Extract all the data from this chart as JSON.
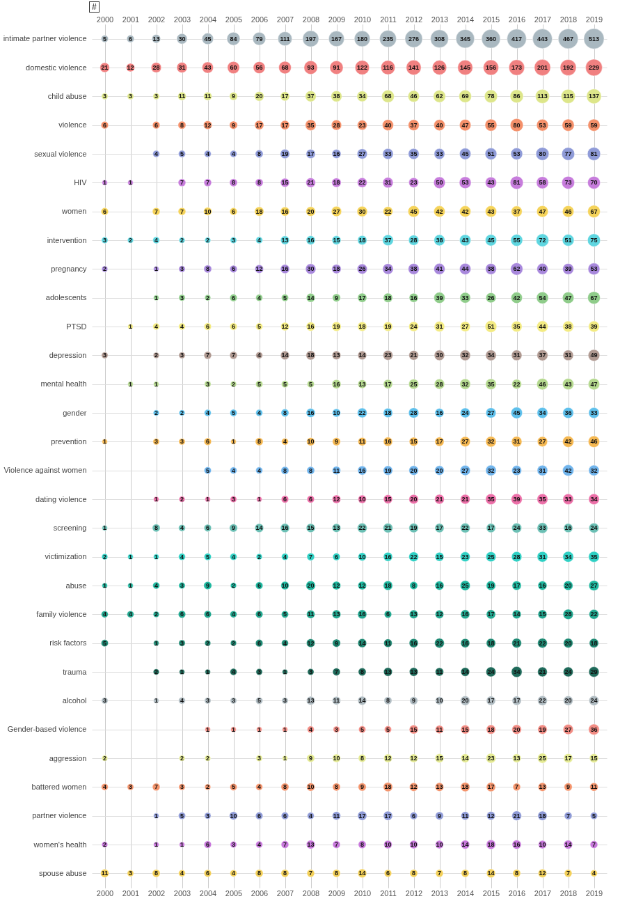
{
  "chart_data": {
    "type": "heatmap",
    "grid": true,
    "data_labels": true,
    "annotations": [
      "#"
    ],
    "categories": [
      "2000",
      "2001",
      "2002",
      "2003",
      "2004",
      "2005",
      "2006",
      "2007",
      "2008",
      "2009",
      "2010",
      "2011",
      "2012",
      "2013",
      "2014",
      "2015",
      "2016",
      "2017",
      "2018",
      "2019"
    ],
    "y_categories": [
      "intimate partner violence",
      "domestic violence",
      "child abuse",
      "violence",
      "sexual violence",
      "HIV",
      "women",
      "intervention",
      "pregnancy",
      "adolescents",
      "PTSD",
      "depression",
      "mental health",
      "gender",
      "prevention",
      "Violence against women",
      "dating violence",
      "screening",
      "victimization",
      "abuse",
      "family violence",
      "risk factors",
      "trauma",
      "alcohol",
      "Gender-based violence",
      "aggression",
      "battered women",
      "partner violence",
      "women's health",
      "spouse abuse"
    ],
    "colors": [
      "#a9b8c0",
      "#f08080",
      "#dde68a",
      "#f4906a",
      "#8f9bd8",
      "#c77ddc",
      "#f5d35a",
      "#5fd6e0",
      "#a888dc",
      "#8fcc8a",
      "#f3eb82",
      "#b09a92",
      "#b5d98f",
      "#5ec0ec",
      "#f5b852",
      "#70b4ec",
      "#ec6fa8",
      "#6bbfb4",
      "#2fd0c4",
      "#1fb8a0",
      "#22a890",
      "#1f8a74",
      "#1f6a5a",
      "#b0bcc2",
      "#f28c84",
      "#e4ea92",
      "#f4946c",
      "#8e9ad6",
      "#c878dc",
      "#f3d05a"
    ],
    "cells": [
      [
        5,
        6,
        13,
        30,
        45,
        84,
        79,
        111,
        197,
        167,
        180,
        235,
        276,
        308,
        345,
        360,
        417,
        443,
        467,
        513
      ],
      [
        21,
        12,
        28,
        31,
        43,
        60,
        56,
        68,
        93,
        91,
        122,
        116,
        141,
        126,
        145,
        156,
        173,
        201,
        192,
        229
      ],
      [
        3,
        3,
        3,
        11,
        11,
        9,
        20,
        17,
        37,
        38,
        34,
        68,
        46,
        62,
        69,
        78,
        86,
        113,
        115,
        137
      ],
      [
        6,
        null,
        6,
        8,
        12,
        9,
        17,
        17,
        35,
        28,
        23,
        40,
        37,
        40,
        47,
        55,
        80,
        53,
        59,
        59
      ],
      [
        null,
        null,
        4,
        5,
        4,
        4,
        8,
        19,
        17,
        16,
        27,
        33,
        35,
        33,
        45,
        51,
        53,
        80,
        77,
        81
      ],
      [
        1,
        1,
        null,
        7,
        7,
        8,
        8,
        15,
        21,
        18,
        22,
        31,
        23,
        50,
        53,
        43,
        81,
        58,
        73,
        70
      ],
      [
        6,
        null,
        7,
        7,
        10,
        6,
        18,
        16,
        20,
        27,
        30,
        22,
        45,
        42,
        42,
        43,
        37,
        47,
        46,
        67
      ],
      [
        3,
        2,
        4,
        2,
        2,
        3,
        4,
        13,
        16,
        15,
        18,
        37,
        28,
        38,
        43,
        45,
        55,
        72,
        51,
        75
      ],
      [
        2,
        null,
        1,
        3,
        8,
        6,
        12,
        16,
        30,
        18,
        26,
        34,
        38,
        41,
        44,
        38,
        62,
        40,
        39,
        53
      ],
      [
        null,
        null,
        1,
        3,
        2,
        6,
        4,
        5,
        14,
        9,
        17,
        18,
        16,
        39,
        33,
        26,
        42,
        54,
        47,
        67
      ],
      [
        null,
        1,
        4,
        4,
        6,
        6,
        5,
        12,
        16,
        19,
        18,
        19,
        24,
        31,
        27,
        51,
        35,
        44,
        38,
        39
      ],
      [
        3,
        null,
        2,
        3,
        7,
        7,
        4,
        14,
        18,
        13,
        14,
        23,
        21,
        30,
        32,
        34,
        31,
        37,
        31,
        49
      ],
      [
        null,
        1,
        1,
        null,
        3,
        2,
        5,
        5,
        5,
        16,
        13,
        17,
        25,
        28,
        32,
        35,
        22,
        46,
        43,
        47
      ],
      [
        null,
        null,
        2,
        2,
        4,
        5,
        4,
        8,
        16,
        10,
        22,
        18,
        28,
        16,
        24,
        27,
        45,
        34,
        36,
        33
      ],
      [
        1,
        null,
        3,
        3,
        6,
        1,
        8,
        4,
        10,
        9,
        11,
        16,
        15,
        17,
        27,
        32,
        31,
        27,
        42,
        46
      ],
      [
        null,
        null,
        null,
        null,
        5,
        4,
        4,
        8,
        8,
        11,
        16,
        19,
        20,
        20,
        27,
        32,
        23,
        31,
        42,
        32
      ],
      [
        null,
        null,
        1,
        2,
        1,
        3,
        1,
        6,
        6,
        12,
        10,
        15,
        20,
        21,
        21,
        35,
        39,
        35,
        33,
        34
      ],
      [
        1,
        null,
        8,
        4,
        6,
        9,
        14,
        16,
        15,
        13,
        22,
        21,
        19,
        17,
        22,
        17,
        24,
        33,
        16,
        24
      ],
      [
        2,
        1,
        1,
        4,
        5,
        4,
        2,
        4,
        7,
        6,
        10,
        16,
        22,
        15,
        23,
        25,
        28,
        31,
        34,
        35
      ],
      [
        1,
        1,
        4,
        3,
        9,
        2,
        6,
        10,
        20,
        12,
        12,
        18,
        8,
        16,
        25,
        19,
        17,
        16,
        20,
        27
      ],
      [
        4,
        4,
        2,
        6,
        6,
        4,
        6,
        5,
        11,
        13,
        16,
        6,
        13,
        12,
        16,
        17,
        14,
        15,
        28,
        22
      ],
      [
        5,
        null,
        1,
        3,
        2,
        2,
        6,
        4,
        12,
        9,
        14,
        11,
        16,
        22,
        16,
        18,
        21,
        22,
        20,
        18
      ],
      [
        null,
        null,
        2,
        1,
        1,
        4,
        3,
        1,
        3,
        7,
        8,
        13,
        13,
        11,
        14,
        24,
        34,
        21,
        24,
        29
      ],
      [
        3,
        null,
        1,
        4,
        3,
        3,
        5,
        3,
        13,
        11,
        14,
        8,
        9,
        10,
        20,
        17,
        17,
        22,
        20,
        24
      ],
      [
        null,
        null,
        null,
        null,
        1,
        1,
        1,
        1,
        4,
        3,
        5,
        5,
        15,
        11,
        15,
        18,
        20,
        19,
        27,
        36
      ],
      [
        2,
        null,
        null,
        2,
        2,
        null,
        3,
        1,
        9,
        10,
        8,
        12,
        12,
        15,
        14,
        23,
        13,
        25,
        17,
        15
      ],
      [
        4,
        3,
        7,
        3,
        2,
        5,
        4,
        8,
        10,
        8,
        9,
        18,
        12,
        13,
        18,
        17,
        7,
        13,
        9,
        11
      ],
      [
        null,
        null,
        1,
        5,
        3,
        10,
        6,
        6,
        4,
        11,
        17,
        17,
        6,
        9,
        11,
        12,
        21,
        18,
        7,
        5
      ],
      [
        2,
        null,
        1,
        1,
        6,
        3,
        4,
        7,
        13,
        7,
        8,
        10,
        10,
        10,
        14,
        18,
        16,
        10,
        14,
        7
      ],
      [
        11,
        3,
        8,
        4,
        6,
        4,
        8,
        8,
        7,
        8,
        14,
        6,
        8,
        7,
        8,
        14,
        8,
        12,
        7,
        4
      ]
    ]
  }
}
